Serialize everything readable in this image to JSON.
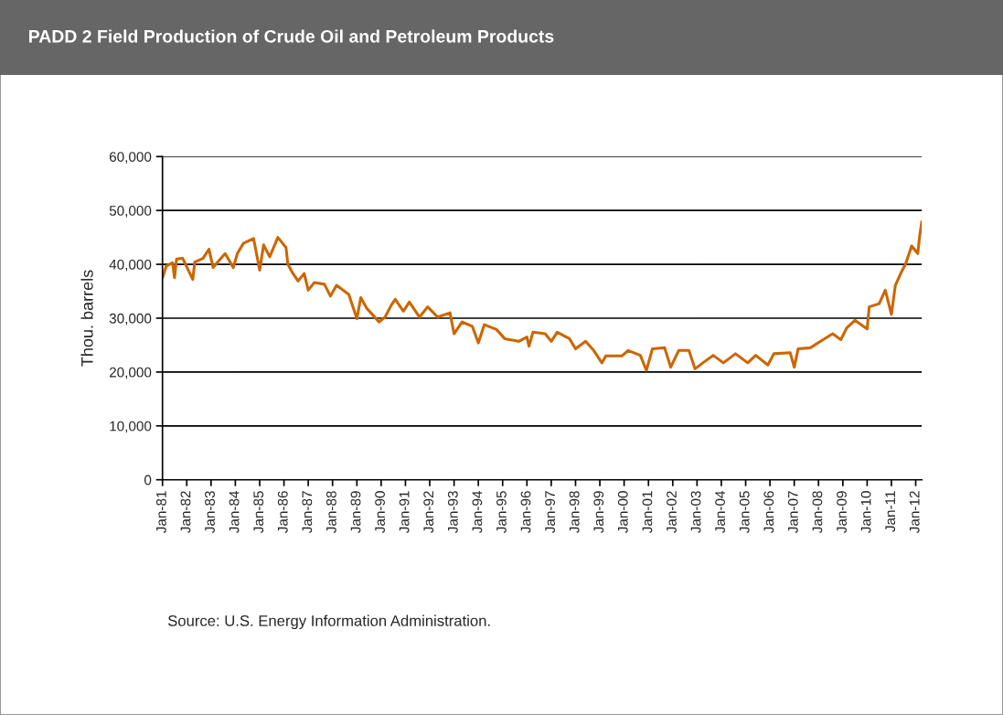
{
  "chart_data": {
    "type": "line",
    "title": "PADD 2 Field Production of Crude Oil and Petroleum Products",
    "ylabel": "Thou. barrels",
    "annotations": [
      "Source: U.S. Energy Information Administration."
    ],
    "x": [
      "1981-01",
      "1981-03",
      "1981-06",
      "1981-07",
      "1981-08",
      "1981-11",
      "1982-04",
      "1982-05",
      "1982-09",
      "1982-12",
      "1983-02",
      "1983-08",
      "1983-12",
      "1984-02",
      "1984-05",
      "1984-10",
      "1985-01",
      "1985-03",
      "1985-06",
      "1985-10",
      "1986-02",
      "1986-03",
      "1986-05",
      "1986-08",
      "1986-11",
      "1987-01",
      "1987-04",
      "1987-09",
      "1987-12",
      "1988-03",
      "1988-09",
      "1989-01",
      "1989-03",
      "1989-06",
      "1989-12",
      "1990-03",
      "1990-06",
      "1990-08",
      "1990-12",
      "1991-03",
      "1991-08",
      "1991-12",
      "1992-05",
      "1992-11",
      "1993-01",
      "1993-05",
      "1993-10",
      "1994-01",
      "1994-04",
      "1994-10",
      "1995-02",
      "1995-09",
      "1996-01",
      "1996-02",
      "1996-04",
      "1996-10",
      "1997-01",
      "1997-04",
      "1997-10",
      "1998-01",
      "1998-06",
      "1998-10",
      "1999-02",
      "1999-04",
      "1999-12",
      "2000-03",
      "2000-09",
      "2000-12",
      "2001-03",
      "2001-09",
      "2001-12",
      "2002-04",
      "2002-09",
      "2002-12",
      "2003-05",
      "2003-09",
      "2004-02",
      "2004-08",
      "2005-02",
      "2005-06",
      "2005-12",
      "2006-03",
      "2006-11",
      "2007-01",
      "2007-03",
      "2007-09",
      "2008-02",
      "2008-08",
      "2008-12",
      "2009-03",
      "2009-07",
      "2010-01",
      "2010-02",
      "2010-07",
      "2010-10",
      "2011-01",
      "2011-03",
      "2011-06",
      "2011-08",
      "2011-11",
      "2012-02",
      "2012-03",
      "2012-04"
    ],
    "series": [
      {
        "color": "#cc6600",
        "values": [
          37500,
          39700,
          40300,
          37500,
          41000,
          41100,
          37200,
          40400,
          41100,
          42800,
          39400,
          42000,
          39400,
          42000,
          43900,
          44800,
          38900,
          43600,
          41400,
          45000,
          43100,
          40000,
          38600,
          36900,
          38300,
          35200,
          36600,
          36300,
          34100,
          36100,
          34400,
          29900,
          33800,
          31800,
          29300,
          30200,
          32400,
          33500,
          31300,
          33000,
          30200,
          32100,
          30200,
          31000,
          27100,
          29300,
          28500,
          25400,
          28800,
          27900,
          26200,
          25700,
          26500,
          24800,
          27400,
          27100,
          25700,
          27400,
          26200,
          24300,
          25700,
          24000,
          21700,
          23000,
          23000,
          24000,
          23100,
          20300,
          24300,
          24500,
          20900,
          24000,
          24000,
          20600,
          22000,
          23100,
          21700,
          23400,
          21700,
          23100,
          21300,
          23400,
          23600,
          20900,
          24300,
          24500,
          25700,
          27100,
          26000,
          28200,
          29600,
          28000,
          32100,
          32700,
          35200,
          30700,
          36100,
          38600,
          40000,
          43400,
          42000,
          45300,
          47900
        ]
      }
    ],
    "xlim": [
      "1981-01",
      "2012-04"
    ],
    "xticks": [
      {
        "value": "1981-01",
        "label": "Jan-81"
      },
      {
        "value": "1982-01",
        "label": "Jan-82"
      },
      {
        "value": "1983-01",
        "label": "Jan-83"
      },
      {
        "value": "1984-01",
        "label": "Jan-84"
      },
      {
        "value": "1985-01",
        "label": "Jan-85"
      },
      {
        "value": "1986-01",
        "label": "Jan-86"
      },
      {
        "value": "1987-01",
        "label": "Jan-87"
      },
      {
        "value": "1988-01",
        "label": "Jan-88"
      },
      {
        "value": "1989-01",
        "label": "Jan-89"
      },
      {
        "value": "1990-01",
        "label": "Jan-90"
      },
      {
        "value": "1991-01",
        "label": "Jan-91"
      },
      {
        "value": "1992-01",
        "label": "Jan-92"
      },
      {
        "value": "1993-01",
        "label": "Jan-93"
      },
      {
        "value": "1994-01",
        "label": "Jan-94"
      },
      {
        "value": "1995-01",
        "label": "Jan-95"
      },
      {
        "value": "1996-01",
        "label": "Jan-96"
      },
      {
        "value": "1997-01",
        "label": "Jan-97"
      },
      {
        "value": "1998-01",
        "label": "Jan-98"
      },
      {
        "value": "1999-01",
        "label": "Jan-99"
      },
      {
        "value": "2000-01",
        "label": "Jan-00"
      },
      {
        "value": "2001-01",
        "label": "Jan-01"
      },
      {
        "value": "2002-01",
        "label": "Jan-02"
      },
      {
        "value": "2003-01",
        "label": "Jan-03"
      },
      {
        "value": "2004-01",
        "label": "Jan-04"
      },
      {
        "value": "2005-01",
        "label": "Jan-05"
      },
      {
        "value": "2006-01",
        "label": "Jan-06"
      },
      {
        "value": "2007-01",
        "label": "Jan-07"
      },
      {
        "value": "2008-01",
        "label": "Jan-08"
      },
      {
        "value": "2009-01",
        "label": "Jan-09"
      },
      {
        "value": "2010-01",
        "label": "Jan-10"
      },
      {
        "value": "2011-01",
        "label": "Jan-11"
      },
      {
        "value": "2012-01",
        "label": "Jan-12"
      }
    ],
    "ylim": [
      0,
      60000
    ],
    "yticks": [
      {
        "value": 0,
        "label": "0"
      },
      {
        "value": 10000,
        "label": "10,000"
      },
      {
        "value": 20000,
        "label": "20,000"
      },
      {
        "value": 30000,
        "label": "30,000"
      },
      {
        "value": 40000,
        "label": "40,000"
      },
      {
        "value": 50000,
        "label": "50,000"
      },
      {
        "value": 60000,
        "label": "60,000"
      }
    ],
    "grid": "y",
    "marker": "none",
    "line_style": "solid"
  }
}
